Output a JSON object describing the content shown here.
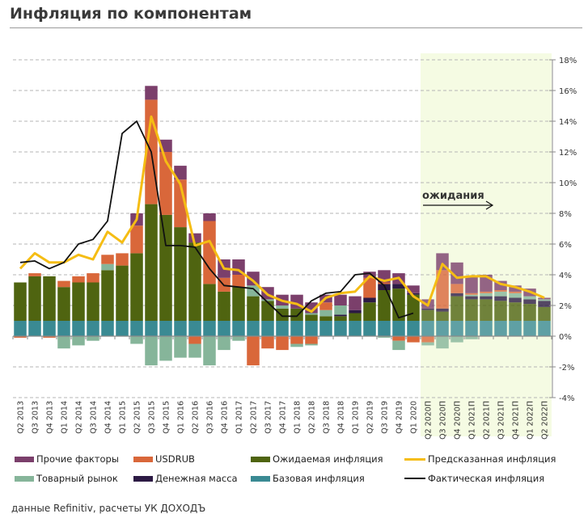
{
  "title": "Инфляция по компонентам",
  "source": "данные Refinitiv, расчеты УК ДОХОДЪ",
  "annotation": "ожидания",
  "colors": {
    "other": "#7b3f6b",
    "usdrub": "#d9673a",
    "expected": "#4f6410",
    "commodity": "#86b59a",
    "money": "#2c1a44",
    "base": "#3a8a93",
    "predicted": "#f5bd14",
    "actual": "#111111",
    "forecast_bg": "#f5fbe3"
  },
  "legend": [
    {
      "key": "other",
      "label": "Прочие факторы",
      "kind": "bar"
    },
    {
      "key": "usdrub",
      "label": "USDRUB",
      "kind": "bar"
    },
    {
      "key": "expected",
      "label": "Ожидаемая инфляция",
      "kind": "bar"
    },
    {
      "key": "predicted",
      "label": "Предсказанная инфляция",
      "kind": "line"
    },
    {
      "key": "commodity",
      "label": "Товарный рынок",
      "kind": "bar"
    },
    {
      "key": "money",
      "label": "Денежная масса",
      "kind": "bar"
    },
    {
      "key": "base",
      "label": "Базовая инфляция",
      "kind": "bar"
    },
    {
      "key": "actual",
      "label": "Фактическая инфляция",
      "kind": "line"
    }
  ],
  "chart_data": {
    "type": "bar",
    "stacked": true,
    "title": "Инфляция по компонентам",
    "xlabel": "",
    "ylabel": "",
    "ylim": [
      -4,
      18
    ],
    "yticks": [
      "-4%",
      "-2%",
      "0%",
      "2%",
      "4%",
      "6%",
      "8%",
      "10%",
      "12%",
      "14%",
      "16%",
      "18%"
    ],
    "ytick_values": [
      -4,
      -2,
      0,
      2,
      4,
      6,
      8,
      10,
      12,
      14,
      16,
      18
    ],
    "y_axis_position": "right",
    "grid": true,
    "legend_position": "bottom",
    "forecast_start_index": 28,
    "categories": [
      "Q2 2013",
      "Q3 2013",
      "Q4 2013",
      "Q1 2014",
      "Q2 2014",
      "Q3 2014",
      "Q4 2014",
      "Q1 2015",
      "Q2 2015",
      "Q3 2015",
      "Q4 2015",
      "Q1 2016",
      "Q2 2016",
      "Q3 2016",
      "Q4 2016",
      "Q1 2017",
      "Q2 2017",
      "Q3 2017",
      "Q4 2017",
      "Q1 2018",
      "Q2 2018",
      "Q3 2018",
      "Q4 2018",
      "Q1 2019",
      "Q2 2019",
      "Q3 2019",
      "Q4 2019",
      "Q1 2020",
      "Q2 2020П",
      "Q3 2020П",
      "Q4 2020П",
      "Q1 2021П",
      "Q2 2021П",
      "Q3 2021П",
      "Q4 2021П",
      "Q1 2022П",
      "Q2 2022П"
    ],
    "series": [
      {
        "key": "base",
        "name": "Базовая инфляция",
        "values": [
          1.0,
          1.0,
          1.0,
          1.0,
          1.0,
          1.0,
          1.0,
          1.0,
          1.0,
          1.0,
          1.0,
          1.0,
          1.0,
          1.0,
          1.0,
          1.0,
          1.0,
          1.0,
          1.0,
          1.0,
          1.0,
          1.0,
          1.0,
          1.0,
          1.0,
          1.0,
          1.0,
          1.0,
          1.0,
          1.0,
          1.0,
          1.0,
          1.0,
          1.0,
          1.0,
          1.0,
          1.0
        ]
      },
      {
        "key": "expected",
        "name": "Ожидаемая инфляция",
        "values": [
          2.5,
          2.9,
          2.9,
          2.2,
          2.5,
          2.5,
          3.3,
          3.6,
          4.4,
          7.6,
          6.9,
          6.1,
          5.1,
          2.4,
          1.9,
          2.2,
          1.6,
          1.3,
          0.8,
          0.8,
          0.4,
          0.3,
          0.3,
          0.5,
          1.2,
          2.0,
          2.1,
          1.7,
          0.7,
          0.6,
          1.6,
          1.4,
          1.4,
          1.3,
          1.2,
          1.1,
          0.9
        ]
      },
      {
        "key": "money",
        "name": "Денежная масса",
        "values": [
          0,
          0,
          0,
          0,
          0,
          0,
          0,
          0,
          0,
          0,
          0,
          0,
          0,
          0,
          0,
          0,
          0,
          0,
          0,
          0,
          0,
          0,
          0.1,
          0.2,
          0.3,
          0.4,
          0.3,
          0.1,
          0.1,
          0.2,
          0.2,
          0.2,
          0.2,
          0.3,
          0.3,
          0.3,
          0.4
        ]
      },
      {
        "key": "commodity",
        "name": "Товарный рынок",
        "values": [
          0,
          0,
          0,
          0,
          0,
          0,
          0.4,
          0,
          0,
          0,
          0,
          0,
          0,
          0,
          0,
          0,
          0.7,
          0.1,
          0.2,
          0,
          0.1,
          0.4,
          0.6,
          0.0,
          0,
          0,
          0,
          0,
          0,
          0,
          0,
          0.1,
          0.2,
          0.3,
          0.3,
          0.2,
          0.1
        ]
      },
      {
        "key": "usdrub",
        "name": "USDRUB",
        "values": [
          0,
          0.2,
          0,
          0.4,
          0.4,
          0.6,
          0.6,
          0.8,
          1.8,
          6.8,
          4.1,
          3.1,
          0,
          4.1,
          0.9,
          0.8,
          0,
          0,
          0,
          0,
          0,
          0.5,
          0,
          0,
          1.3,
          0.1,
          0,
          0,
          0,
          2.5,
          0.6,
          0.1,
          0.1,
          0.1,
          0.1,
          0,
          0
        ]
      },
      {
        "key": "other",
        "name": "Прочие факторы",
        "values": [
          0,
          0,
          0,
          0,
          0,
          0,
          0,
          0,
          0.8,
          0.9,
          0.8,
          0.9,
          0.6,
          0.5,
          1.2,
          1.0,
          0.9,
          0.8,
          0.7,
          0.9,
          0.7,
          0.5,
          0.7,
          0.9,
          0.4,
          0.8,
          0.7,
          0.5,
          0.6,
          1.1,
          1.4,
          1.1,
          1.1,
          0.6,
          0.4,
          0.5,
          0.1
        ]
      },
      {
        "key": "commodity_neg",
        "name": "Товарный рынок (отриц.)",
        "values": [
          0,
          0,
          0,
          -0.8,
          -0.6,
          -0.3,
          0,
          0,
          -0.5,
          -1.9,
          -1.6,
          -1.4,
          -0.9,
          -1.9,
          -0.9,
          -0.3,
          0,
          0,
          0,
          -0.2,
          -0.1,
          0,
          0,
          0,
          0,
          -0.1,
          -0.6,
          0,
          -0.2,
          -0.8,
          -0.4,
          -0.2,
          0,
          0,
          0,
          0,
          0
        ]
      },
      {
        "key": "usdrub_neg",
        "name": "USDRUB (отриц.)",
        "values": [
          -0.1,
          0,
          -0.1,
          0,
          0,
          0,
          0,
          0,
          0,
          0,
          0,
          0,
          -0.5,
          0,
          0,
          0,
          -1.9,
          -0.8,
          -0.9,
          -0.5,
          -0.5,
          0,
          0,
          0,
          0,
          0,
          -0.3,
          -0.4,
          -0.4,
          0,
          0,
          0,
          0,
          0,
          0,
          0,
          0
        ]
      }
    ],
    "lines": [
      {
        "key": "predicted",
        "name": "Предсказанная инфляция",
        "values": [
          4.4,
          5.4,
          4.8,
          4.8,
          5.3,
          5.0,
          6.8,
          6.1,
          7.6,
          14.3,
          11.4,
          9.9,
          5.9,
          6.2,
          4.4,
          4.3,
          3.6,
          2.7,
          2.3,
          2.1,
          1.6,
          2.5,
          2.8,
          2.9,
          3.9,
          3.6,
          3.8,
          2.6,
          2.0,
          4.7,
          3.8,
          3.9,
          3.9,
          3.4,
          3.2,
          2.9,
          2.5
        ]
      },
      {
        "key": "actual",
        "name": "Фактическая инфляция",
        "values": [
          4.8,
          4.9,
          4.4,
          4.8,
          6.0,
          6.3,
          7.5,
          13.2,
          14.0,
          12.0,
          5.9,
          5.9,
          5.8,
          4.4,
          3.3,
          3.2,
          3.1,
          2.2,
          1.3,
          1.3,
          2.3,
          2.8,
          2.9,
          4.0,
          4.1,
          3.3,
          1.2,
          1.5,
          null,
          null,
          null,
          null,
          null,
          null,
          null,
          null,
          null
        ]
      }
    ]
  }
}
